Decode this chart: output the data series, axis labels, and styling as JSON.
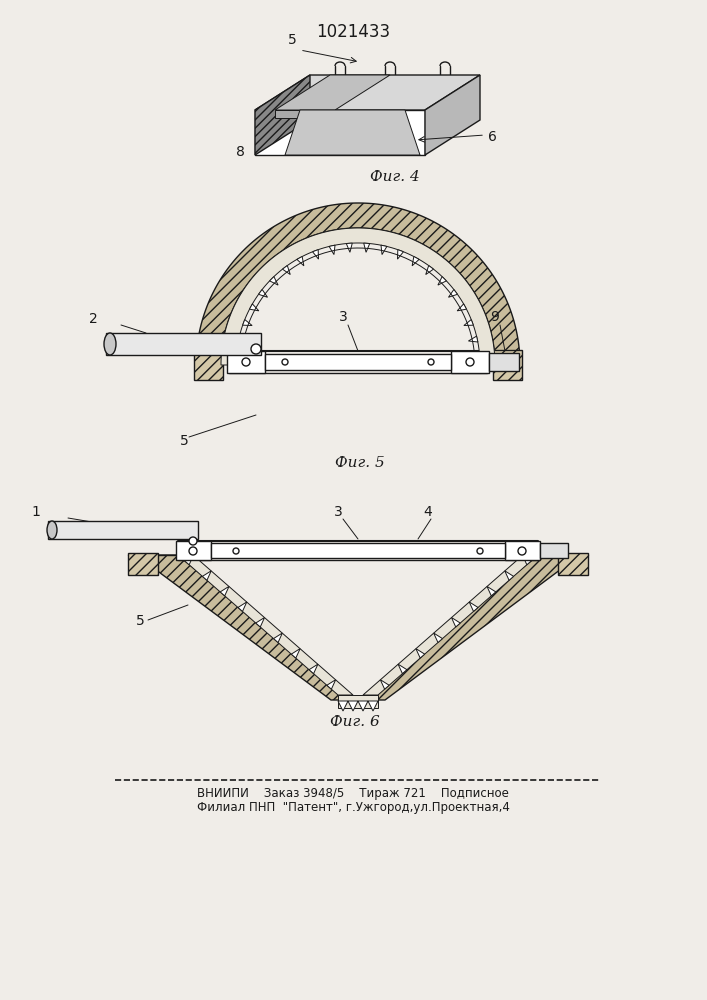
{
  "title": "1021433",
  "bg_color": "#f0ede8",
  "fig4_label": "Фиг. 4",
  "fig5_label": "Фиг. 5",
  "fig6_label": "Фиг. 6",
  "footer_line1": "ВНИИПИ    Заказ 3948/5    Тираж 721    Подписное",
  "footer_line2": "Филиал ПНП  \"Патент\", г.Ужгород,ул.Проектная,4"
}
